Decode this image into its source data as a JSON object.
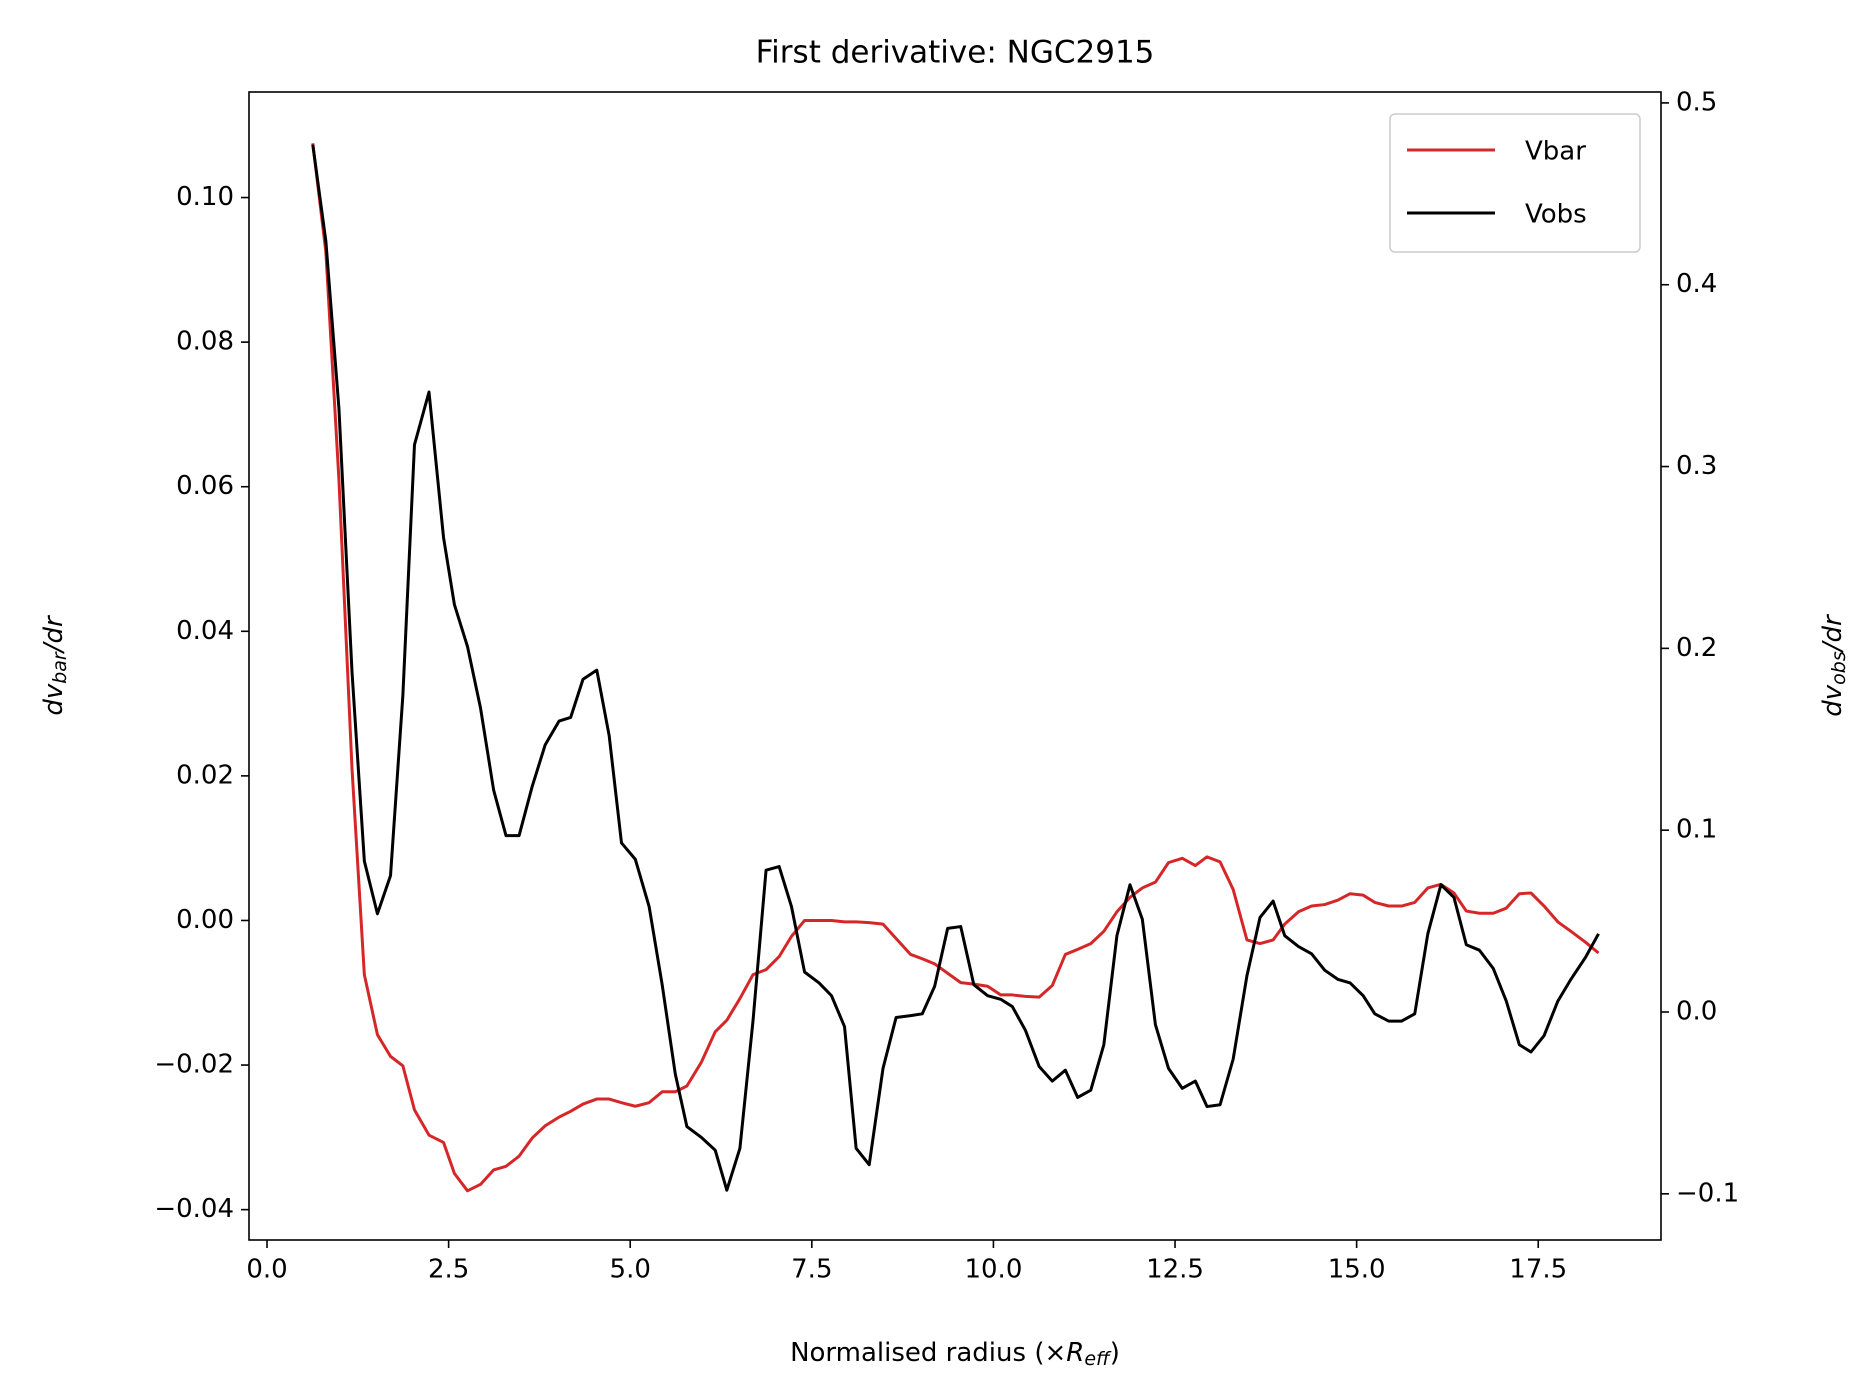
{
  "chart_data": {
    "type": "line",
    "title": "First derivative: NGC2915",
    "xlabel": [
      "Normalised radius (×",
      "R",
      "eff",
      ")"
    ],
    "ylabel": [
      "dv",
      "bar",
      "/dr"
    ],
    "y2label": [
      "dv",
      "obs",
      "/dr"
    ],
    "x": [
      0.63,
      0.81,
      0.99,
      1.17,
      1.34,
      1.52,
      1.7,
      1.87,
      2.03,
      2.23,
      2.43,
      2.58,
      2.76,
      2.94,
      3.12,
      3.29,
      3.47,
      3.65,
      3.83,
      4.02,
      4.18,
      4.35,
      4.54,
      4.71,
      4.88,
      5.07,
      5.26,
      5.44,
      5.62,
      5.78,
      5.98,
      6.17,
      6.33,
      6.51,
      6.69,
      6.87,
      7.05,
      7.22,
      7.4,
      7.6,
      7.77,
      7.95,
      8.11,
      8.29,
      8.48,
      8.66,
      8.86,
      9.02,
      9.19,
      9.37,
      9.55,
      9.73,
      9.92,
      10.1,
      10.26,
      10.44,
      10.63,
      10.81,
      10.99,
      11.16,
      11.34,
      11.52,
      11.7,
      11.88,
      12.05,
      12.23,
      12.41,
      12.6,
      12.78,
      12.94,
      13.12,
      13.3,
      13.49,
      13.67,
      13.85,
      14.01,
      14.2,
      14.38,
      14.56,
      14.74,
      14.91,
      15.09,
      15.25,
      15.44,
      15.62,
      15.8,
      15.98,
      16.16,
      16.34,
      16.51,
      16.69,
      16.88,
      17.06,
      17.24,
      17.4,
      17.58,
      17.77,
      17.95,
      18.15,
      18.33
    ],
    "series": [
      {
        "name": "Vbar",
        "color": "#d62728",
        "axis": "y",
        "values": [
          0.1075,
          0.0925,
          0.061,
          0.021,
          -0.0075,
          -0.0158,
          -0.0188,
          -0.0201,
          -0.0262,
          -0.0297,
          -0.0307,
          -0.035,
          -0.0374,
          -0.0365,
          -0.0345,
          -0.034,
          -0.0326,
          -0.0301,
          -0.0284,
          -0.0272,
          -0.0264,
          -0.0254,
          -0.0247,
          -0.0247,
          -0.0252,
          -0.0257,
          -0.0252,
          -0.0237,
          -0.0237,
          -0.0229,
          -0.0196,
          -0.0154,
          -0.0138,
          -0.0108,
          -0.0075,
          -0.0068,
          -0.005,
          -0.0022,
          0.0,
          0.0,
          0.0,
          -0.0002,
          -0.0002,
          -0.0003,
          -0.0005,
          -0.0025,
          -0.0047,
          -0.0053,
          -0.006,
          -0.0073,
          -0.0086,
          -0.0088,
          -0.0091,
          -0.0103,
          -0.0103,
          -0.0105,
          -0.0106,
          -0.009,
          -0.0047,
          -0.004,
          -0.0032,
          -0.0015,
          0.0012,
          0.0032,
          0.0045,
          0.0053,
          0.008,
          0.0086,
          0.0076,
          0.0088,
          0.0081,
          0.0043,
          -0.0027,
          -0.0032,
          -0.0027,
          -0.0005,
          0.0012,
          0.002,
          0.0022,
          0.0028,
          0.0037,
          0.0035,
          0.0025,
          0.002,
          0.002,
          0.0025,
          0.0045,
          0.005,
          0.0038,
          0.0013,
          0.001,
          0.001,
          0.0017,
          0.0037,
          0.0038,
          0.002,
          -0.0002,
          -0.0015,
          -0.003,
          -0.0045
        ]
      },
      {
        "name": "Vobs",
        "color": "#000000",
        "axis": "y2",
        "values": [
          0.477,
          0.424,
          0.332,
          0.187,
          0.083,
          0.054,
          0.075,
          0.174,
          0.312,
          0.341,
          0.261,
          0.224,
          0.201,
          0.167,
          0.122,
          0.097,
          0.097,
          0.124,
          0.147,
          0.16,
          0.162,
          0.183,
          0.188,
          0.152,
          0.093,
          0.084,
          0.058,
          0.015,
          -0.034,
          -0.063,
          -0.069,
          -0.076,
          -0.098,
          -0.075,
          -0.005,
          0.078,
          0.08,
          0.058,
          0.022,
          0.016,
          0.009,
          -0.008,
          -0.075,
          -0.084,
          -0.031,
          -0.003,
          -0.002,
          -0.001,
          0.014,
          0.046,
          0.047,
          0.015,
          0.009,
          0.007,
          0.003,
          -0.01,
          -0.03,
          -0.038,
          -0.032,
          -0.047,
          -0.043,
          -0.018,
          0.042,
          0.07,
          0.051,
          -0.007,
          -0.031,
          -0.042,
          -0.038,
          -0.052,
          -0.051,
          -0.026,
          0.02,
          0.052,
          0.061,
          0.042,
          0.036,
          0.032,
          0.023,
          0.018,
          0.016,
          0.009,
          -0.001,
          -0.005,
          -0.005,
          -0.001,
          0.043,
          0.07,
          0.063,
          0.037,
          0.034,
          0.024,
          0.006,
          -0.018,
          -0.022,
          -0.013,
          0.006,
          0.018,
          0.03,
          0.043
        ]
      }
    ],
    "xlim": [
      -0.248,
      19.19
    ],
    "xticks": [
      {
        "value": 0,
        "label": "0.0"
      },
      2.5,
      {
        "value": 5,
        "label": "5.0"
      },
      7.5,
      {
        "value": 10,
        "label": "10.0"
      },
      12.5,
      {
        "value": 15,
        "label": "15.0"
      },
      17.5
    ],
    "ylim": [
      -0.0442,
      0.1146
    ],
    "yticks": [
      {
        "value": -0.04,
        "label": "−0.04"
      },
      {
        "value": -0.02,
        "label": "−0.02"
      },
      {
        "value": 0,
        "label": "0.00"
      },
      {
        "value": 0.02,
        "label": "0.02"
      },
      {
        "value": 0.04,
        "label": "0.04"
      },
      {
        "value": 0.06,
        "label": "0.06"
      },
      {
        "value": 0.08,
        "label": "0.08"
      },
      {
        "value": 0.1,
        "label": "0.10"
      }
    ],
    "y2lim": [
      -0.1254,
      0.506
    ],
    "y2ticks": [
      {
        "value": -0.1,
        "label": "−0.1"
      },
      {
        "value": 0,
        "label": "0.0"
      },
      0.1,
      0.2,
      0.3,
      0.4,
      0.5
    ],
    "ylabel_color": "#d62728",
    "legend": "upper right"
  }
}
